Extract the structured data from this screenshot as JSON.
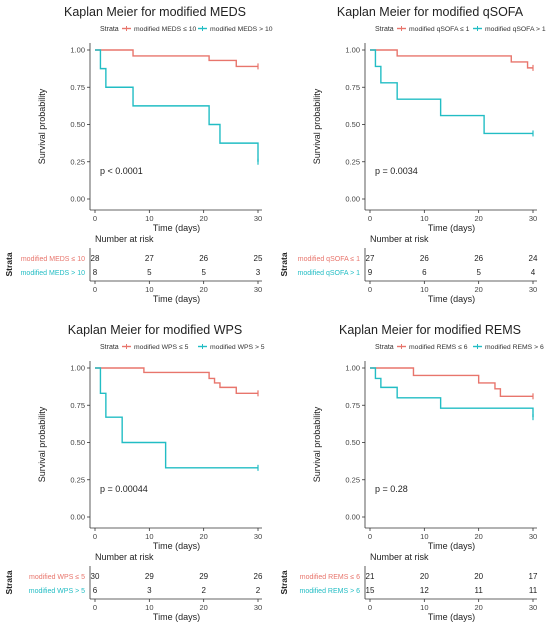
{
  "chart_data": [
    {
      "type": "line",
      "title": "Kaplan Meier for modified MEDS",
      "legend_title": "Strata",
      "legend_position": "top",
      "xlabel": "Time (days)",
      "ylabel": "Survival probability",
      "xlim": [
        0,
        30
      ],
      "ylim": [
        0,
        1
      ],
      "xticks": [
        "0",
        "10",
        "20",
        "30"
      ],
      "yticks": [
        "0.00",
        "0.25",
        "0.50",
        "0.75",
        "1.00"
      ],
      "pvalue": "p < 0.0001",
      "risk_title": "Number at risk",
      "strata_label": "Strata",
      "series": [
        {
          "name": "modified MEDS ≤ 10",
          "color": "#E8756C",
          "x": [
            0,
            7,
            21,
            26,
            30
          ],
          "y": [
            1.0,
            0.96,
            0.93,
            0.89,
            0.89
          ],
          "risk": [
            "28",
            "27",
            "26",
            "25"
          ]
        },
        {
          "name": "modified MEDS > 10",
          "color": "#22BDC4",
          "x": [
            0,
            1,
            2,
            7,
            21,
            23,
            30
          ],
          "y": [
            1.0,
            0.875,
            0.75,
            0.625,
            0.5,
            0.375,
            0.25
          ],
          "risk": [
            "8",
            "5",
            "5",
            "3"
          ]
        }
      ]
    },
    {
      "type": "line",
      "title": "Kaplan Meier for modified qSOFA",
      "legend_title": "Strata",
      "legend_position": "top",
      "xlabel": "Time (days)",
      "ylabel": "Survival probability",
      "xlim": [
        0,
        30
      ],
      "ylim": [
        0,
        1
      ],
      "xticks": [
        "0",
        "10",
        "20",
        "30"
      ],
      "yticks": [
        "0.00",
        "0.25",
        "0.50",
        "0.75",
        "1.00"
      ],
      "pvalue": "p = 0.0034",
      "risk_title": "Number at risk",
      "strata_label": "Strata",
      "series": [
        {
          "name": "modified qSOFA ≤ 1",
          "color": "#E8756C",
          "x": [
            0,
            5,
            26,
            29,
            30
          ],
          "y": [
            1.0,
            0.96,
            0.92,
            0.88,
            0.88
          ],
          "risk": [
            "27",
            "26",
            "26",
            "24"
          ]
        },
        {
          "name": "modified qSOFA > 1",
          "color": "#22BDC4",
          "x": [
            0,
            1,
            2,
            5,
            13,
            21,
            30
          ],
          "y": [
            1.0,
            0.89,
            0.78,
            0.67,
            0.56,
            0.44,
            0.44
          ],
          "risk": [
            "9",
            "6",
            "5",
            "4"
          ]
        }
      ]
    },
    {
      "type": "line",
      "title": "Kaplan Meier for modified WPS",
      "legend_title": "Strata",
      "legend_position": "top",
      "xlabel": "Time (days)",
      "ylabel": "Survival probability",
      "xlim": [
        0,
        30
      ],
      "ylim": [
        0,
        1
      ],
      "xticks": [
        "0",
        "10",
        "20",
        "30"
      ],
      "yticks": [
        "0.00",
        "0.25",
        "0.50",
        "0.75",
        "1.00"
      ],
      "pvalue": "p = 0.00044",
      "risk_title": "Number at risk",
      "strata_label": "Strata",
      "series": [
        {
          "name": "modified WPS ≤ 5",
          "color": "#E8756C",
          "x": [
            0,
            9,
            21,
            22,
            23,
            26,
            30
          ],
          "y": [
            1.0,
            0.97,
            0.93,
            0.9,
            0.87,
            0.83,
            0.83
          ],
          "risk": [
            "30",
            "29",
            "29",
            "26"
          ]
        },
        {
          "name": "modified WPS > 5",
          "color": "#22BDC4",
          "x": [
            0,
            1,
            2,
            5,
            13,
            30
          ],
          "y": [
            1.0,
            0.83,
            0.67,
            0.5,
            0.33,
            0.33
          ],
          "risk": [
            "6",
            "3",
            "2",
            "2"
          ]
        }
      ]
    },
    {
      "type": "line",
      "title": "Kaplan Meier for modified REMS",
      "legend_title": "Strata",
      "legend_position": "top",
      "xlabel": "Time (days)",
      "ylabel": "Survival probability",
      "xlim": [
        0,
        30
      ],
      "ylim": [
        0,
        1
      ],
      "xticks": [
        "0",
        "10",
        "20",
        "30"
      ],
      "yticks": [
        "0.00",
        "0.25",
        "0.50",
        "0.75",
        "1.00"
      ],
      "pvalue": "p = 0.28",
      "risk_title": "Number at risk",
      "strata_label": "Strata",
      "series": [
        {
          "name": "modified REMS ≤ 6",
          "color": "#E8756C",
          "x": [
            0,
            8,
            20,
            23,
            24,
            30
          ],
          "y": [
            1.0,
            0.95,
            0.9,
            0.86,
            0.81,
            0.81
          ],
          "risk": [
            "21",
            "20",
            "20",
            "17"
          ]
        },
        {
          "name": "modified REMS > 6",
          "color": "#22BDC4",
          "x": [
            0,
            1,
            2,
            5,
            13,
            30
          ],
          "y": [
            1.0,
            0.93,
            0.87,
            0.8,
            0.73,
            0.67
          ],
          "risk": [
            "15",
            "12",
            "11",
            "11"
          ]
        }
      ]
    }
  ]
}
